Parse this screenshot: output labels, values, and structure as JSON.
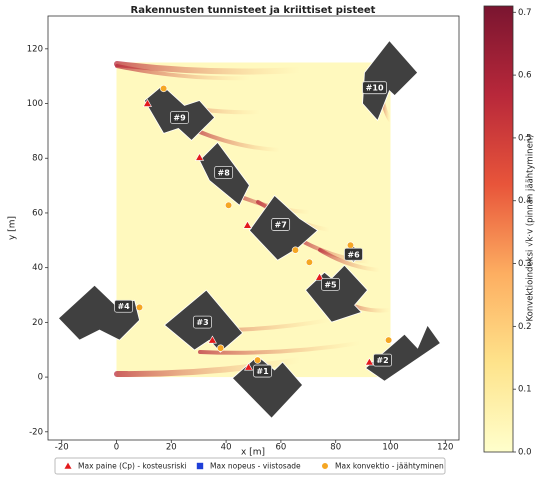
{
  "chart_data": {
    "type": "map",
    "title": "Rakennusten tunnisteet ja kriittiset pisteet",
    "x_label": "x [m]",
    "y_label": "y [m]",
    "xlim": [
      -25,
      125
    ],
    "ylim": [
      -23,
      132
    ],
    "xticks": [
      -20,
      0,
      20,
      40,
      60,
      80,
      100,
      120
    ],
    "yticks": [
      -20,
      0,
      20,
      40,
      60,
      80,
      100,
      120
    ],
    "field": {
      "x": [
        0,
        100
      ],
      "y": [
        0,
        115
      ],
      "value": 0.03
    },
    "colorbar": {
      "label": "Konvektioindeksi √k·v (pinnan jäähtyminen)",
      "lim": [
        0,
        0.71
      ],
      "ticks": [
        {
          "value": 0,
          "label": "0.0"
        },
        0.1,
        0.2,
        0.3,
        0.4,
        0.5,
        0.6,
        0.7
      ],
      "colors": [
        "#ffffcc",
        "#fee38b",
        "#fdae61",
        "#e8553a",
        "#b8283a",
        "#7a1530"
      ]
    },
    "buildings": [
      {
        "label": "#1",
        "label_x": 53.3,
        "label_y": 2.2,
        "polygon_x": [
          42.3,
          51.5,
          57.7,
          60.6,
          67.9,
          56.6
        ],
        "polygon_y": [
          -0.4,
          7.7,
          2.6,
          5.5,
          -2.9,
          -15
        ]
      },
      {
        "label": "#2",
        "label_x": 97.1,
        "label_y": 6.2,
        "polygon_x": [
          90.9,
          105.1,
          109.9,
          113.5,
          118.2,
          97.8
        ],
        "polygon_y": [
          3.3,
          15.7,
          10.6,
          19,
          12.4,
          -1.5
        ]
      },
      {
        "label": "#3",
        "label_x": 31.4,
        "label_y": 20.1,
        "polygon_x": [
          17.5,
          32.8,
          46,
          37.9,
          33.9,
          28.5
        ],
        "polygon_y": [
          19,
          31.8,
          16.1,
          9.1,
          13.5,
          9.9
        ]
      },
      {
        "label": "#4",
        "label_x": 2.6,
        "label_y": 25.9,
        "polygon_x": [
          -21.2,
          -8,
          -0.4,
          6.6,
          8.4,
          1.1,
          -6.2,
          -13.5
        ],
        "polygon_y": [
          21.5,
          33.6,
          26.3,
          28.1,
          20.8,
          13.5,
          17.2,
          13.5
        ]
      },
      {
        "label": "#5",
        "label_x": 78.1,
        "label_y": 33.9,
        "polygon_x": [
          69,
          75.9,
          78.5,
          83.2,
          91.6,
          86.9,
          89.4,
          78.5
        ],
        "polygon_y": [
          31.8,
          38.3,
          36.1,
          40.9,
          31.8,
          26.3,
          23.7,
          20.1
        ]
      },
      {
        "label": "#6",
        "label_x": 86.5,
        "label_y": 44.9,
        "polygon_x": [
          83.2,
          86.5,
          89.8,
          86.5
        ],
        "polygon_y": [
          44.9,
          47.8,
          44.9,
          42
        ]
      },
      {
        "label": "#7",
        "label_x": 59.9,
        "label_y": 55.8,
        "polygon_x": [
          48.5,
          57.7,
          66.8,
          73.4,
          66.1,
          58.8
        ],
        "polygon_y": [
          53.6,
          66.4,
          58,
          53.6,
          47.1,
          42.7
        ]
      },
      {
        "label": "#8",
        "label_x": 39.1,
        "label_y": 74.8,
        "polygon_x": [
          30.3,
          36.9,
          48.5,
          44.9,
          33.9
        ],
        "polygon_y": [
          79.2,
          85.8,
          70.1,
          62.8,
          71.9
        ]
      },
      {
        "label": "#9",
        "label_x": 23,
        "label_y": 94.9,
        "polygon_x": [
          10.2,
          16.8,
          24.8,
          30.3,
          35.8,
          27.4,
          22.6,
          17.2
        ],
        "polygon_y": [
          101.1,
          106.6,
          99.3,
          101.1,
          94.9,
          86.5,
          90.9,
          89.1
        ]
      },
      {
        "label": "#10",
        "label_x": 94.2,
        "label_y": 105.8,
        "polygon_x": [
          90.5,
          99.6,
          109.9,
          101.5,
          99.6,
          95.3,
          89.8
        ],
        "polygon_y": [
          111.3,
          123,
          111.3,
          102.9,
          104.7,
          93.8,
          100
        ]
      }
    ],
    "series": [
      {
        "name": "Max paine (Cp) - kosteusriski",
        "marker": "triangle",
        "color": "#e31a1c",
        "x": [
          11.3,
          30.3,
          47.8,
          35,
          48.2,
          74.1,
          92.3
        ],
        "y": [
          100,
          80.3,
          55.5,
          13.5,
          3.6,
          36.5,
          5.5
        ]
      },
      {
        "name": "Max nopeus - viistosade",
        "marker": "square",
        "color": "#1f3fd8",
        "x": [],
        "y": []
      },
      {
        "name": "Max konvektio - jäähtyminen",
        "marker": "circle",
        "color": "#f5a623",
        "x": [
          17.2,
          40.9,
          65.3,
          38,
          51.5,
          8.4,
          70.4,
          85.4,
          99.3
        ],
        "y": [
          105.5,
          62.8,
          46.4,
          10.6,
          6.2,
          25.5,
          42,
          48.2,
          13.5
        ]
      }
    ]
  }
}
